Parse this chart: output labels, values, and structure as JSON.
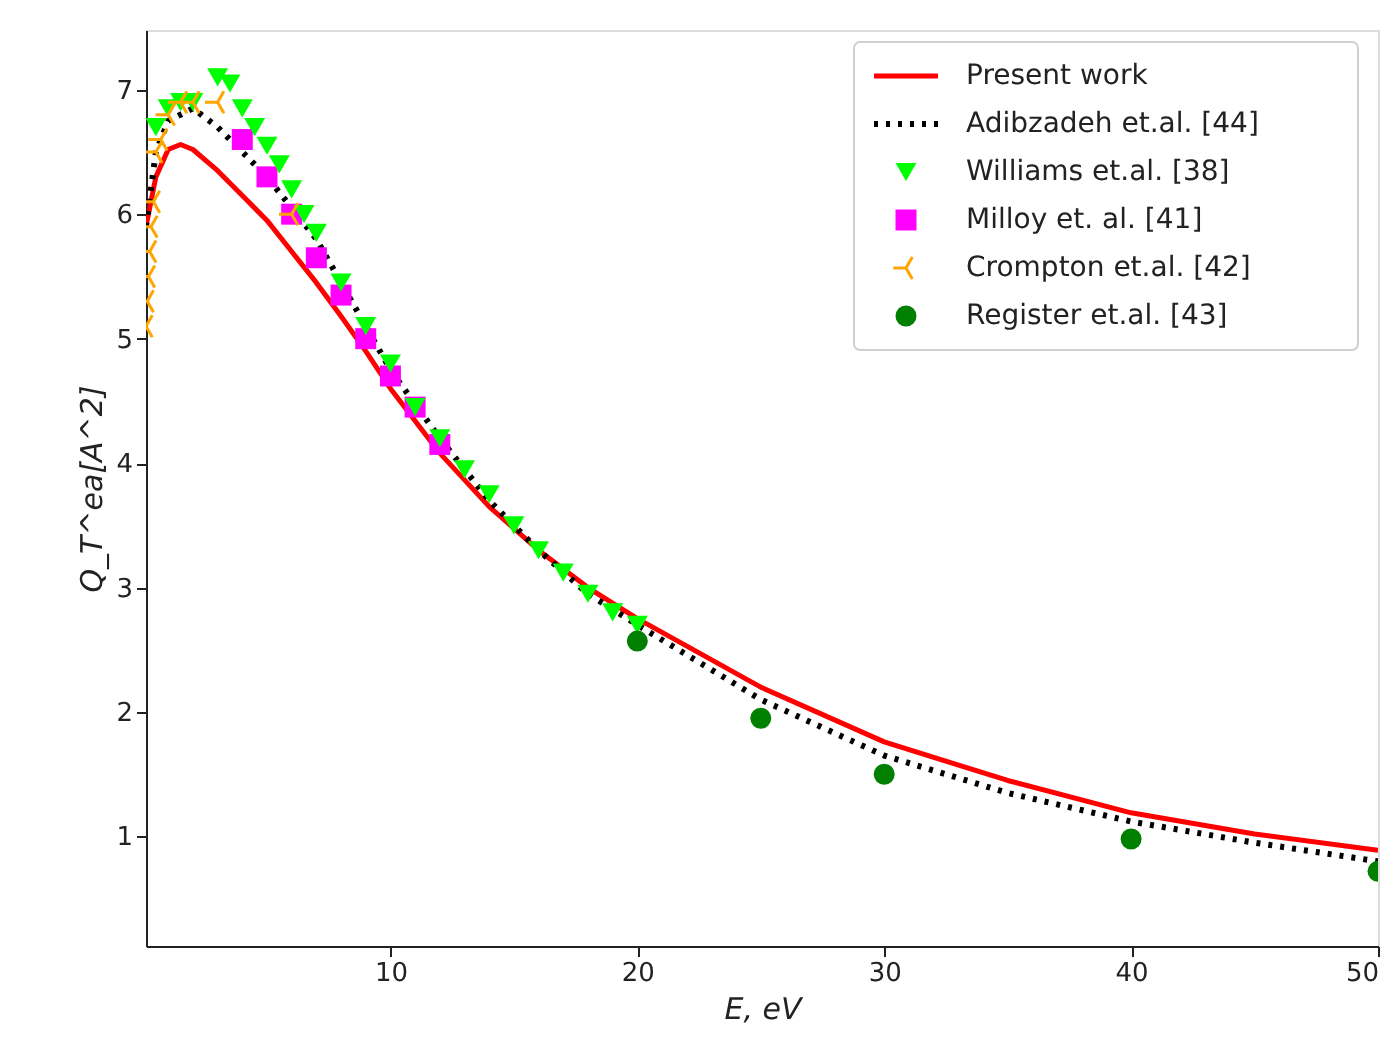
{
  "chart_data": {
    "type": "line",
    "xlabel": "E, eV",
    "ylabel": "Q_T^ea[A^2]",
    "xlim": [
      0.1,
      50
    ],
    "ylim": [
      0.12,
      7.48
    ],
    "xticks": [
      10,
      20,
      30,
      40,
      50
    ],
    "yticks": [
      1,
      2,
      3,
      4,
      5,
      6,
      7
    ],
    "grid": false,
    "legend": "top right",
    "series": [
      {
        "name": "Present work",
        "color": "#ff0000",
        "line_style": "solid",
        "x": [
          0.1,
          0.5,
          1,
          1.5,
          2,
          3,
          4,
          5,
          6,
          7,
          8,
          9,
          10,
          12,
          14,
          16,
          18,
          20,
          25,
          30,
          35,
          40,
          45,
          50
        ],
        "values": [
          5.9,
          6.3,
          6.52,
          6.56,
          6.52,
          6.35,
          6.15,
          5.95,
          5.7,
          5.45,
          5.18,
          4.9,
          4.6,
          4.08,
          3.65,
          3.3,
          3.0,
          2.75,
          2.2,
          1.76,
          1.45,
          1.19,
          1.02,
          0.89
        ]
      },
      {
        "name": "Adibzadeh et.al. [44]",
        "color": "#000000",
        "line_style": "dotted",
        "x": [
          0.1,
          0.5,
          1,
          2,
          3,
          4,
          5,
          6,
          7,
          8,
          9,
          10,
          12,
          14,
          16,
          18,
          20,
          25,
          30,
          35,
          40,
          45,
          50
        ],
        "values": [
          5.9,
          6.5,
          6.75,
          6.85,
          6.7,
          6.5,
          6.3,
          6.05,
          5.8,
          5.45,
          5.1,
          4.75,
          4.2,
          3.7,
          3.3,
          2.95,
          2.7,
          2.1,
          1.65,
          1.35,
          1.12,
          0.95,
          0.8
        ]
      },
      {
        "name": "Williams et.al. [38]",
        "type": "scatter",
        "color": "#00ff00",
        "marker": "triangle",
        "x": [
          0.5,
          1,
          1.5,
          2,
          3,
          3.5,
          4,
          4.5,
          5,
          5.5,
          6,
          6.5,
          7,
          8,
          9,
          10,
          11,
          12,
          13,
          14,
          15,
          16,
          17,
          18,
          19,
          20
        ],
        "values": [
          6.7,
          6.85,
          6.9,
          6.9,
          7.1,
          7.05,
          6.85,
          6.7,
          6.55,
          6.4,
          6.2,
          6.0,
          5.85,
          5.45,
          5.1,
          4.8,
          4.45,
          4.2,
          3.95,
          3.75,
          3.5,
          3.3,
          3.12,
          2.95,
          2.8,
          2.7
        ]
      },
      {
        "name": "Milloy et. al. [41]",
        "type": "scatter",
        "color": "#ff00ff",
        "marker": "square",
        "x": [
          4,
          5,
          6,
          7,
          8,
          9,
          10,
          11,
          12
        ],
        "values": [
          6.6,
          6.3,
          6.0,
          5.65,
          5.35,
          5.0,
          4.7,
          4.45,
          4.15
        ]
      },
      {
        "name": "Crompton et.al. [42]",
        "type": "scatter",
        "color": "#ffa500",
        "marker": "cross",
        "x": [
          0.1,
          0.15,
          0.2,
          0.25,
          0.3,
          0.4,
          0.5,
          0.7,
          1,
          1.5,
          2,
          3,
          6
        ],
        "values": [
          5.1,
          5.3,
          5.5,
          5.7,
          5.9,
          6.1,
          6.5,
          6.6,
          6.8,
          6.9,
          6.9,
          6.9,
          6.0
        ]
      },
      {
        "name": "Register et.al. [43]",
        "type": "scatter",
        "color": "#007f00",
        "marker": "circle",
        "x": [
          20,
          25,
          30,
          40,
          50
        ],
        "values": [
          2.57,
          1.95,
          1.5,
          0.98,
          0.72
        ]
      }
    ]
  }
}
